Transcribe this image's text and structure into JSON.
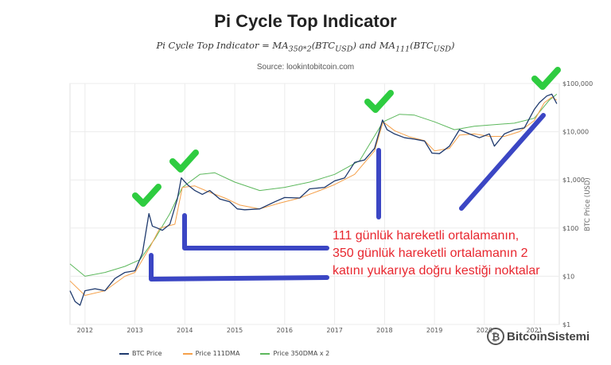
{
  "header": {
    "title": "Pi Cycle Top Indicator",
    "subtitle": "Pi Cycle Top Indicator = MA350*2(BTCUSD) and MA111(BTCUSD)",
    "source": "Source: lookintobitcoin.com"
  },
  "annotation": {
    "lines": [
      "111 günlük hareketli ortalamanın,",
      "350 günlük hareketli ortalamanın 2",
      "katını yukarıya doğru kestiği noktalar"
    ],
    "color": "#e8272f"
  },
  "watermark": {
    "text": "BitcoinSistemi"
  },
  "legend": {
    "items": [
      {
        "label": "BTC Price",
        "color": "#1f3a6e"
      },
      {
        "label": "Price 111DMA",
        "color": "#f5a04a"
      },
      {
        "label": "Price 350DMA x 2",
        "color": "#5cb85c"
      }
    ]
  },
  "icons": {
    "check": "check-icon",
    "check_color": "#2ecc40",
    "arrow_color": "#3b46c4"
  },
  "chart_data": {
    "type": "line",
    "title": "Pi Cycle Top Indicator",
    "ylabel": "BTC Price (USD)",
    "yscale": "log",
    "ylim": [
      1,
      100000
    ],
    "xlim": [
      2011.7,
      2021.5
    ],
    "x_ticks": [
      "2012",
      "2013",
      "2014",
      "2015",
      "2016",
      "2017",
      "2018",
      "2019",
      "2020",
      "2021"
    ],
    "y_ticks": [
      "$1",
      "$10",
      "$100",
      "$1,000",
      "$10,000",
      "$100,000"
    ],
    "grid": true,
    "legend_position": "bottom",
    "series": [
      {
        "name": "BTC Price",
        "color": "#1f3a6e",
        "x": [
          2011.7,
          2011.8,
          2011.9,
          2012.0,
          2012.2,
          2012.4,
          2012.6,
          2012.8,
          2013.0,
          2013.15,
          2013.28,
          2013.35,
          2013.45,
          2013.55,
          2013.7,
          2013.85,
          2013.93,
          2014.05,
          2014.2,
          2014.35,
          2014.5,
          2014.7,
          2014.9,
          2015.05,
          2015.2,
          2015.5,
          2015.8,
          2016.0,
          2016.3,
          2016.5,
          2016.8,
          2017.0,
          2017.2,
          2017.4,
          2017.6,
          2017.8,
          2017.96,
          2018.05,
          2018.2,
          2018.4,
          2018.6,
          2018.8,
          2018.95,
          2019.1,
          2019.3,
          2019.5,
          2019.7,
          2019.9,
          2020.1,
          2020.2,
          2020.4,
          2020.6,
          2020.8,
          2021.0,
          2021.1,
          2021.25,
          2021.35,
          2021.45
        ],
        "y": [
          5,
          3,
          2.5,
          5,
          5.5,
          5,
          9,
          12,
          13,
          30,
          200,
          110,
          100,
          90,
          120,
          400,
          1100,
          800,
          600,
          500,
          600,
          400,
          350,
          250,
          240,
          250,
          350,
          430,
          420,
          650,
          700,
          950,
          1100,
          2300,
          2600,
          4500,
          17500,
          11000,
          9000,
          7500,
          7000,
          6400,
          3600,
          3500,
          5000,
          11000,
          9000,
          7500,
          9000,
          5000,
          9000,
          11000,
          12000,
          29000,
          40000,
          55000,
          60000,
          38000
        ]
      },
      {
        "name": "Price 111DMA",
        "color": "#f5a04a",
        "x": [
          2011.7,
          2012.0,
          2012.4,
          2012.8,
          2013.0,
          2013.3,
          2013.5,
          2013.8,
          2013.95,
          2014.2,
          2014.5,
          2014.8,
          2015.1,
          2015.5,
          2015.9,
          2016.3,
          2016.7,
          2017.0,
          2017.4,
          2017.8,
          2017.97,
          2018.2,
          2018.5,
          2018.8,
          2019.0,
          2019.3,
          2019.5,
          2019.8,
          2020.1,
          2020.4,
          2020.7,
          2021.0,
          2021.2,
          2021.35,
          2021.45
        ],
        "y": [
          8,
          4,
          5,
          10,
          12,
          40,
          100,
          120,
          700,
          750,
          550,
          420,
          300,
          250,
          330,
          420,
          600,
          800,
          1300,
          4000,
          16000,
          10500,
          7800,
          6500,
          4000,
          4500,
          8500,
          9000,
          8000,
          8000,
          10000,
          17000,
          40000,
          52000,
          45000
        ]
      },
      {
        "name": "Price 350DMA x 2",
        "color": "#5cb85c",
        "x": [
          2011.7,
          2012.0,
          2012.4,
          2012.8,
          2013.1,
          2013.4,
          2013.7,
          2013.95,
          2014.3,
          2014.6,
          2015.0,
          2015.5,
          2016.0,
          2016.5,
          2017.0,
          2017.5,
          2017.97,
          2018.3,
          2018.6,
          2019.0,
          2019.4,
          2019.8,
          2020.2,
          2020.6,
          2021.0,
          2021.3,
          2021.45
        ],
        "y": [
          18,
          10,
          12,
          16,
          22,
          60,
          200,
          700,
          1300,
          1400,
          900,
          600,
          700,
          900,
          1300,
          2500,
          16000,
          23000,
          22000,
          16000,
          11000,
          13000,
          14000,
          15000,
          19000,
          45000,
          60000
        ]
      }
    ]
  }
}
